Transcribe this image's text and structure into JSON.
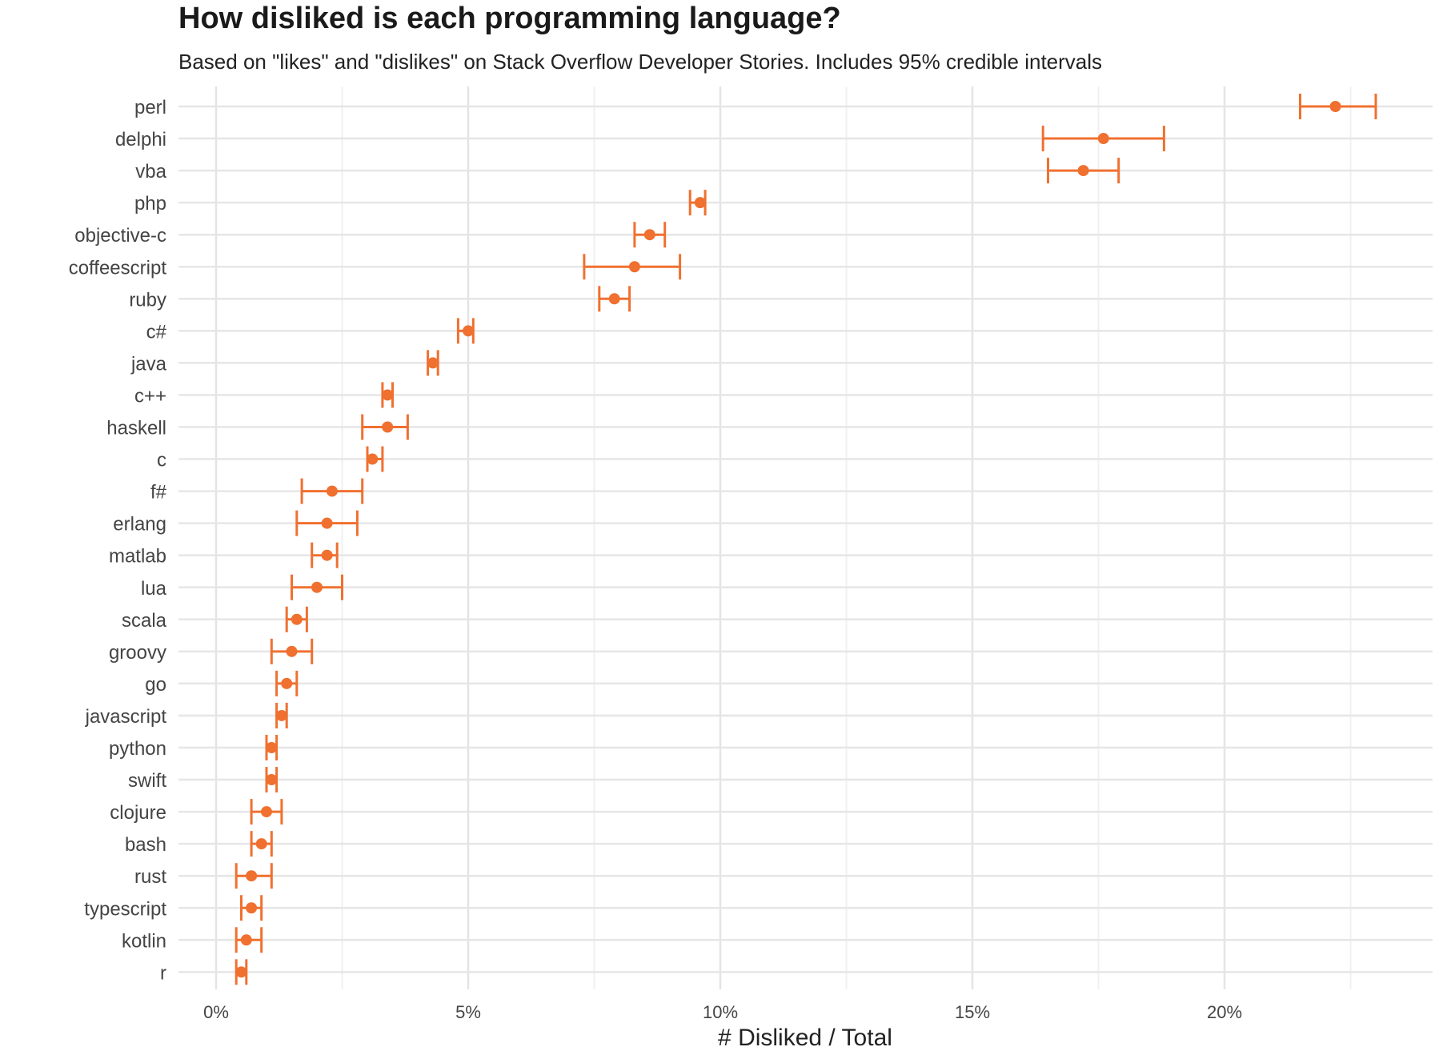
{
  "chart_data": {
    "type": "dot-errorbar",
    "title": "How disliked is each programming language?",
    "subtitle": "Based on \"likes\" and \"dislikes\" on Stack Overflow Developer Stories. Includes 95% credible intervals",
    "xlabel": "# Disliked / Total",
    "ylabel": "",
    "xlim": [
      -0.8,
      24.1
    ],
    "x_ticks": [
      0,
      5,
      10,
      15,
      20
    ],
    "x_tick_labels": [
      "0%",
      "5%",
      "10%",
      "15%",
      "20%"
    ],
    "grid": true,
    "color": "#f07030",
    "categories": [
      "perl",
      "delphi",
      "vba",
      "php",
      "objective-c",
      "coffeescript",
      "ruby",
      "c#",
      "java",
      "c++",
      "haskell",
      "c",
      "f#",
      "erlang",
      "matlab",
      "lua",
      "scala",
      "groovy",
      "go",
      "javascript",
      "python",
      "swift",
      "clojure",
      "bash",
      "rust",
      "typescript",
      "kotlin",
      "r"
    ],
    "values": [
      22.2,
      17.6,
      17.2,
      9.6,
      8.6,
      8.3,
      7.9,
      5.0,
      4.3,
      3.4,
      3.4,
      3.1,
      2.3,
      2.2,
      2.2,
      2.0,
      1.6,
      1.5,
      1.4,
      1.3,
      1.1,
      1.1,
      1.0,
      0.9,
      0.7,
      0.7,
      0.6,
      0.5
    ],
    "lower": [
      21.5,
      16.4,
      16.5,
      9.4,
      8.3,
      7.3,
      7.6,
      4.8,
      4.2,
      3.3,
      2.9,
      3.0,
      1.7,
      1.6,
      1.9,
      1.5,
      1.4,
      1.1,
      1.2,
      1.2,
      1.0,
      1.0,
      0.7,
      0.7,
      0.4,
      0.5,
      0.4,
      0.4
    ],
    "upper": [
      23.0,
      18.8,
      17.9,
      9.7,
      8.9,
      9.2,
      8.2,
      5.1,
      4.4,
      3.5,
      3.8,
      3.3,
      2.9,
      2.8,
      2.4,
      2.5,
      1.8,
      1.9,
      1.6,
      1.4,
      1.2,
      1.2,
      1.3,
      1.1,
      1.1,
      0.9,
      0.9,
      0.6
    ]
  }
}
